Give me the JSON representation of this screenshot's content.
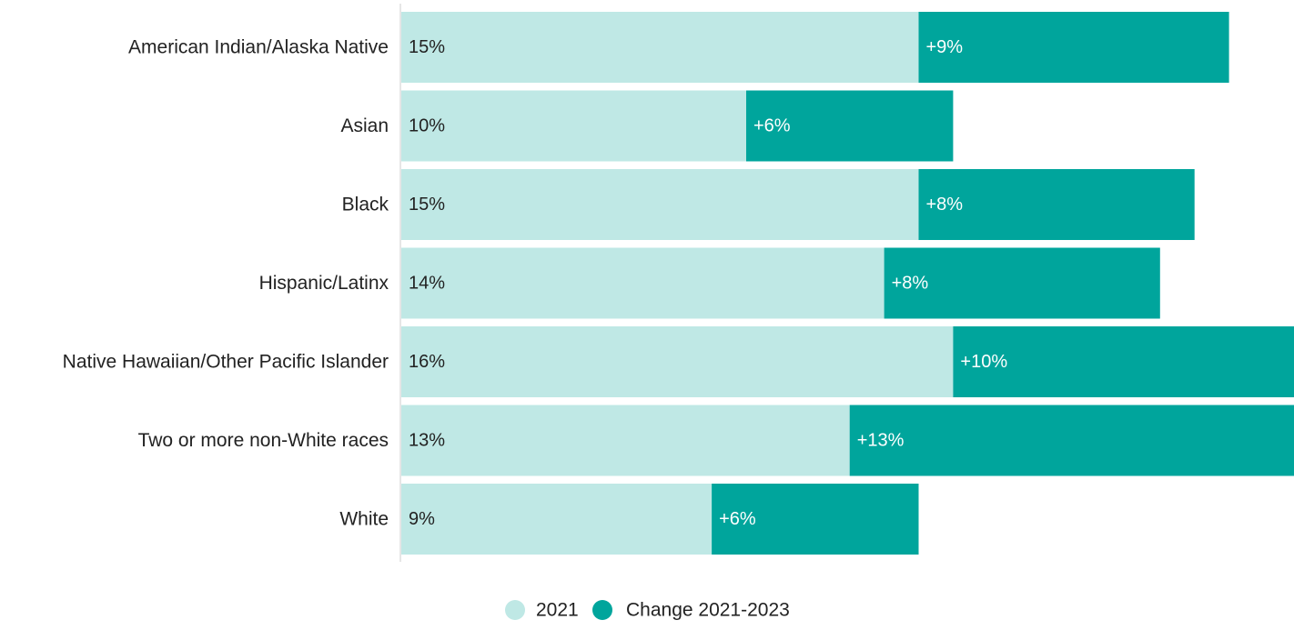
{
  "chart_data": {
    "type": "bar",
    "orientation": "horizontal",
    "stacked": true,
    "categories": [
      "American Indian/Alaska Native",
      "Asian",
      "Black",
      "Hispanic/Latinx",
      "Native Hawaiian/Other Pacific Islander",
      "Two or more non-White races",
      "White"
    ],
    "series": [
      {
        "name": "2021",
        "color": "#bfe8e5",
        "label_color": "#222222",
        "values": [
          15,
          10,
          15,
          14,
          16,
          13,
          9
        ],
        "labels": [
          "15%",
          "10%",
          "15%",
          "14%",
          "16%",
          "13%",
          "9%"
        ]
      },
      {
        "name": "Change 2021-2023",
        "color": "#00a59c",
        "label_color": "#ffffff",
        "values": [
          9,
          6,
          8,
          8,
          10,
          13,
          6
        ],
        "labels": [
          "+9%",
          "+6%",
          "+8%",
          "+8%",
          "+10%",
          "+13%",
          "+6%"
        ]
      }
    ],
    "x_range": [
      0,
      26
    ],
    "grid": false,
    "legend_position": "bottom-center"
  }
}
